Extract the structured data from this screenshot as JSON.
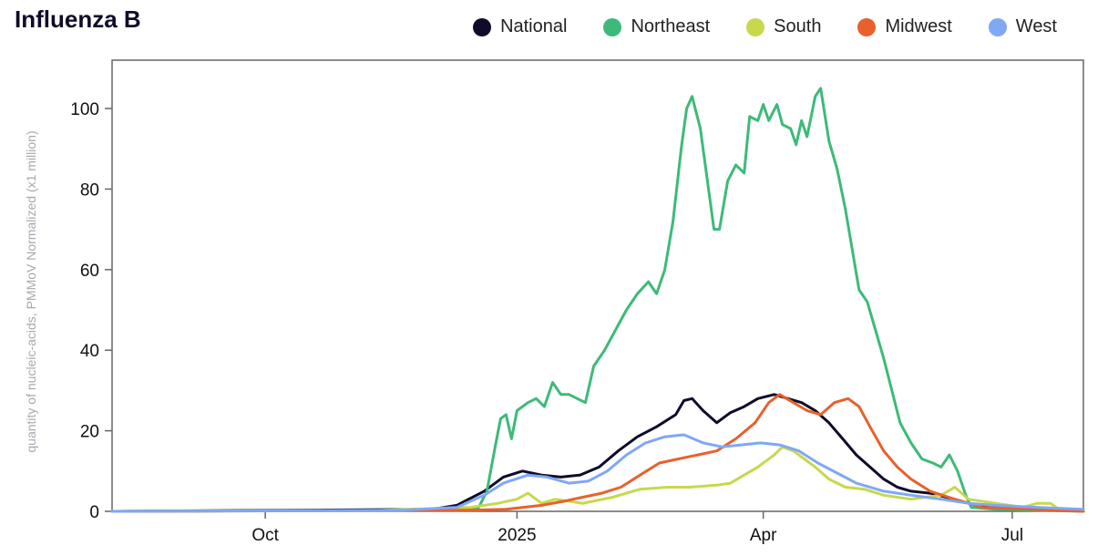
{
  "chart_data": {
    "type": "line",
    "title": "Influenza B",
    "ylabel": "quantity of nucleic-acids, PMMoV Normalized (x1 million)",
    "xlabel": "",
    "ylim": [
      0,
      112
    ],
    "xlim": [
      "2024-08-06",
      "2025-07-27"
    ],
    "y_ticks": [
      0,
      20,
      40,
      60,
      80,
      100
    ],
    "x_ticks": [
      {
        "label": "Oct",
        "date": "2024-10-01"
      },
      {
        "label": "2025",
        "date": "2025-01-01"
      },
      {
        "label": "Apr",
        "date": "2025-04-01"
      },
      {
        "label": "Jul",
        "date": "2025-07-01"
      }
    ],
    "grid": false,
    "legend_placement": "top-right",
    "series": [
      {
        "name": "National",
        "color": "#0f0c2a",
        "points": [
          [
            "2024-08-06",
            0
          ],
          [
            "2024-12-01",
            0.5
          ],
          [
            "2024-12-10",
            1.5
          ],
          [
            "2024-12-20",
            5
          ],
          [
            "2024-12-27",
            8.5
          ],
          [
            "2025-01-03",
            10
          ],
          [
            "2025-01-10",
            9
          ],
          [
            "2025-01-17",
            8.5
          ],
          [
            "2025-01-24",
            9
          ],
          [
            "2025-01-31",
            11
          ],
          [
            "2025-02-07",
            15
          ],
          [
            "2025-02-14",
            18.5
          ],
          [
            "2025-02-21",
            21
          ],
          [
            "2025-02-28",
            24
          ],
          [
            "2025-03-03",
            27.5
          ],
          [
            "2025-03-06",
            28
          ],
          [
            "2025-03-10",
            25
          ],
          [
            "2025-03-15",
            22
          ],
          [
            "2025-03-20",
            24.5
          ],
          [
            "2025-03-25",
            26
          ],
          [
            "2025-03-30",
            28
          ],
          [
            "2025-04-05",
            29
          ],
          [
            "2025-04-10",
            28
          ],
          [
            "2025-04-15",
            27
          ],
          [
            "2025-04-20",
            25
          ],
          [
            "2025-04-25",
            22
          ],
          [
            "2025-04-30",
            18
          ],
          [
            "2025-05-05",
            14
          ],
          [
            "2025-05-10",
            11
          ],
          [
            "2025-05-15",
            8
          ],
          [
            "2025-05-20",
            6
          ],
          [
            "2025-05-25",
            5
          ],
          [
            "2025-06-01",
            4.5
          ],
          [
            "2025-06-07",
            3.5
          ],
          [
            "2025-06-15",
            2
          ],
          [
            "2025-06-25",
            1
          ],
          [
            "2025-07-05",
            0.5
          ],
          [
            "2025-07-20",
            0.2
          ]
        ]
      },
      {
        "name": "Northeast",
        "color": "#3dba79",
        "points": [
          [
            "2024-08-06",
            0
          ],
          [
            "2024-12-10",
            0.3
          ],
          [
            "2024-12-18",
            1
          ],
          [
            "2024-12-21",
            5
          ],
          [
            "2024-12-24",
            16
          ],
          [
            "2024-12-26",
            23
          ],
          [
            "2024-12-28",
            24
          ],
          [
            "2024-12-30",
            18
          ],
          [
            "2025-01-01",
            25
          ],
          [
            "2025-01-05",
            27
          ],
          [
            "2025-01-08",
            28
          ],
          [
            "2025-01-11",
            26
          ],
          [
            "2025-01-14",
            32
          ],
          [
            "2025-01-17",
            29
          ],
          [
            "2025-01-20",
            29
          ],
          [
            "2025-01-23",
            28
          ],
          [
            "2025-01-26",
            27
          ],
          [
            "2025-01-29",
            36
          ],
          [
            "2025-02-02",
            40
          ],
          [
            "2025-02-06",
            45
          ],
          [
            "2025-02-10",
            50
          ],
          [
            "2025-02-14",
            54
          ],
          [
            "2025-02-18",
            57
          ],
          [
            "2025-02-21",
            54
          ],
          [
            "2025-02-24",
            60
          ],
          [
            "2025-02-27",
            72
          ],
          [
            "2025-03-02",
            90
          ],
          [
            "2025-03-04",
            100
          ],
          [
            "2025-03-06",
            103
          ],
          [
            "2025-03-09",
            95
          ],
          [
            "2025-03-12",
            80
          ],
          [
            "2025-03-14",
            70
          ],
          [
            "2025-03-16",
            70
          ],
          [
            "2025-03-19",
            82
          ],
          [
            "2025-03-22",
            86
          ],
          [
            "2025-03-25",
            84
          ],
          [
            "2025-03-27",
            98
          ],
          [
            "2025-03-30",
            97
          ],
          [
            "2025-04-01",
            101
          ],
          [
            "2025-04-03",
            97
          ],
          [
            "2025-04-06",
            101
          ],
          [
            "2025-04-08",
            96
          ],
          [
            "2025-04-11",
            95
          ],
          [
            "2025-04-13",
            91
          ],
          [
            "2025-04-15",
            97
          ],
          [
            "2025-04-17",
            93
          ],
          [
            "2025-04-20",
            103
          ],
          [
            "2025-04-22",
            105
          ],
          [
            "2025-04-25",
            92
          ],
          [
            "2025-04-28",
            85
          ],
          [
            "2025-05-01",
            75
          ],
          [
            "2025-05-04",
            63
          ],
          [
            "2025-05-06",
            55
          ],
          [
            "2025-05-09",
            52
          ],
          [
            "2025-05-12",
            45
          ],
          [
            "2025-05-15",
            38
          ],
          [
            "2025-05-18",
            30
          ],
          [
            "2025-05-21",
            22
          ],
          [
            "2025-05-25",
            17
          ],
          [
            "2025-05-29",
            13
          ],
          [
            "2025-06-02",
            12
          ],
          [
            "2025-06-05",
            11
          ],
          [
            "2025-06-08",
            14
          ],
          [
            "2025-06-11",
            10
          ],
          [
            "2025-06-14",
            4
          ],
          [
            "2025-06-16",
            1
          ],
          [
            "2025-06-25",
            0.5
          ],
          [
            "2025-07-27",
            0
          ]
        ]
      },
      {
        "name": "South",
        "color": "#c7d84c",
        "points": [
          [
            "2024-08-06",
            0
          ],
          [
            "2024-11-10",
            0.2
          ],
          [
            "2024-12-15",
            1
          ],
          [
            "2024-12-25",
            2
          ],
          [
            "2025-01-01",
            3
          ],
          [
            "2025-01-05",
            4.5
          ],
          [
            "2025-01-10",
            2
          ],
          [
            "2025-01-15",
            3
          ],
          [
            "2025-01-25",
            2
          ],
          [
            "2025-02-05",
            3.5
          ],
          [
            "2025-02-15",
            5.5
          ],
          [
            "2025-02-25",
            6
          ],
          [
            "2025-03-05",
            6
          ],
          [
            "2025-03-15",
            6.5
          ],
          [
            "2025-03-20",
            7
          ],
          [
            "2025-03-25",
            9
          ],
          [
            "2025-03-30",
            11
          ],
          [
            "2025-04-05",
            14
          ],
          [
            "2025-04-08",
            16
          ],
          [
            "2025-04-12",
            15
          ],
          [
            "2025-04-16",
            13
          ],
          [
            "2025-04-20",
            11
          ],
          [
            "2025-04-25",
            8
          ],
          [
            "2025-05-01",
            6
          ],
          [
            "2025-05-08",
            5.5
          ],
          [
            "2025-05-15",
            4
          ],
          [
            "2025-05-25",
            3
          ],
          [
            "2025-06-05",
            4
          ],
          [
            "2025-06-10",
            6
          ],
          [
            "2025-06-15",
            3
          ],
          [
            "2025-06-25",
            2
          ],
          [
            "2025-07-05",
            1
          ],
          [
            "2025-07-10",
            2
          ],
          [
            "2025-07-15",
            2
          ],
          [
            "2025-07-18",
            0.5
          ],
          [
            "2025-07-27",
            0
          ]
        ]
      },
      {
        "name": "Midwest",
        "color": "#e8612c",
        "points": [
          [
            "2024-08-06",
            0
          ],
          [
            "2024-12-15",
            0.3
          ],
          [
            "2024-12-28",
            0.5
          ],
          [
            "2025-01-10",
            1.5
          ],
          [
            "2025-01-18",
            2.5
          ],
          [
            "2025-01-25",
            3.5
          ],
          [
            "2025-02-01",
            4.5
          ],
          [
            "2025-02-08",
            6
          ],
          [
            "2025-02-15",
            9
          ],
          [
            "2025-02-22",
            12
          ],
          [
            "2025-03-01",
            13
          ],
          [
            "2025-03-08",
            14
          ],
          [
            "2025-03-15",
            15
          ],
          [
            "2025-03-22",
            18
          ],
          [
            "2025-03-29",
            22
          ],
          [
            "2025-04-03",
            27
          ],
          [
            "2025-04-07",
            29
          ],
          [
            "2025-04-12",
            27
          ],
          [
            "2025-04-17",
            25
          ],
          [
            "2025-04-22",
            24
          ],
          [
            "2025-04-27",
            27
          ],
          [
            "2025-05-02",
            28
          ],
          [
            "2025-05-06",
            26
          ],
          [
            "2025-05-10",
            21
          ],
          [
            "2025-05-15",
            15
          ],
          [
            "2025-05-20",
            11
          ],
          [
            "2025-05-25",
            8
          ],
          [
            "2025-06-01",
            5
          ],
          [
            "2025-06-10",
            3
          ],
          [
            "2025-06-20",
            1
          ],
          [
            "2025-07-27",
            0
          ]
        ]
      },
      {
        "name": "West",
        "color": "#7fa8f5",
        "points": [
          [
            "2024-08-06",
            0
          ],
          [
            "2024-11-20",
            0.3
          ],
          [
            "2024-12-10",
            1
          ],
          [
            "2024-12-20",
            4
          ],
          [
            "2024-12-27",
            7
          ],
          [
            "2025-01-05",
            9
          ],
          [
            "2025-01-12",
            8.5
          ],
          [
            "2025-01-20",
            7
          ],
          [
            "2025-01-27",
            7.5
          ],
          [
            "2025-02-03",
            10
          ],
          [
            "2025-02-10",
            14
          ],
          [
            "2025-02-17",
            17
          ],
          [
            "2025-02-24",
            18.5
          ],
          [
            "2025-03-03",
            19
          ],
          [
            "2025-03-10",
            17
          ],
          [
            "2025-03-17",
            16
          ],
          [
            "2025-03-24",
            16.5
          ],
          [
            "2025-03-31",
            17
          ],
          [
            "2025-04-07",
            16.5
          ],
          [
            "2025-04-14",
            15
          ],
          [
            "2025-04-21",
            12
          ],
          [
            "2025-04-28",
            9.5
          ],
          [
            "2025-05-05",
            7
          ],
          [
            "2025-05-15",
            5
          ],
          [
            "2025-05-25",
            4
          ],
          [
            "2025-06-05",
            3
          ],
          [
            "2025-06-15",
            2
          ],
          [
            "2025-06-25",
            1.5
          ],
          [
            "2025-07-10",
            1
          ],
          [
            "2025-07-27",
            0.5
          ]
        ]
      }
    ]
  }
}
